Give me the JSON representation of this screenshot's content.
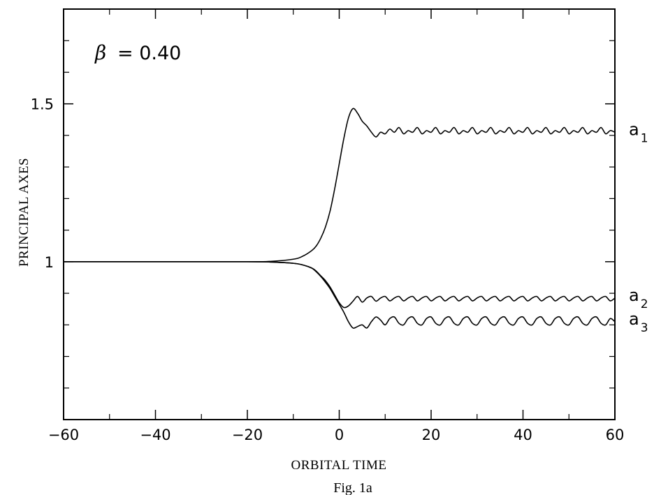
{
  "chart_data": {
    "type": "line",
    "title": "",
    "xlabel": "ORBITAL TIME",
    "ylabel": "PRINCIPAL AXES",
    "caption": "Fig. 1a",
    "annotation": {
      "symbol": "β",
      "text": "= 0.40"
    },
    "xlim": [
      -60,
      60
    ],
    "ylim": [
      0.5,
      1.8
    ],
    "x_ticks": [
      -60,
      -40,
      -20,
      0,
      20,
      40,
      60
    ],
    "x_tick_labels": [
      "−60",
      "−40",
      "−20",
      "0",
      "20",
      "40",
      "60"
    ],
    "y_ticks": [
      1,
      1.5
    ],
    "y_tick_labels": [
      "1",
      "1.5"
    ],
    "grid": false,
    "legend": "none",
    "series": [
      {
        "name": "a1",
        "label": {
          "main": "a",
          "sub": "1"
        },
        "x": [
          -60,
          -40,
          -20,
          -15,
          -10,
          -8,
          -6,
          -5,
          -4,
          -3,
          -2,
          -1,
          0,
          1,
          2,
          3,
          4,
          5,
          6,
          7,
          8,
          9,
          10,
          11,
          12,
          13,
          14,
          15,
          16,
          17,
          18,
          19,
          20,
          21,
          22,
          23,
          24,
          25,
          26,
          27,
          28,
          29,
          30,
          31,
          32,
          33,
          34,
          35,
          36,
          37,
          38,
          39,
          40,
          41,
          42,
          43,
          44,
          45,
          46,
          47,
          48,
          49,
          50,
          51,
          52,
          53,
          54,
          55,
          56,
          57,
          58,
          59,
          60
        ],
        "y": [
          1.0,
          1.0,
          1.0,
          1.001,
          1.008,
          1.017,
          1.035,
          1.05,
          1.075,
          1.11,
          1.16,
          1.23,
          1.31,
          1.39,
          1.455,
          1.485,
          1.47,
          1.445,
          1.43,
          1.41,
          1.395,
          1.41,
          1.405,
          1.42,
          1.41,
          1.425,
          1.405,
          1.415,
          1.41,
          1.425,
          1.405,
          1.415,
          1.41,
          1.425,
          1.405,
          1.415,
          1.41,
          1.425,
          1.405,
          1.415,
          1.41,
          1.425,
          1.405,
          1.415,
          1.41,
          1.425,
          1.405,
          1.415,
          1.41,
          1.425,
          1.405,
          1.415,
          1.41,
          1.425,
          1.405,
          1.415,
          1.41,
          1.425,
          1.405,
          1.415,
          1.41,
          1.425,
          1.405,
          1.415,
          1.41,
          1.425,
          1.405,
          1.415,
          1.41,
          1.425,
          1.405,
          1.415,
          1.41
        ]
      },
      {
        "name": "a2",
        "label": {
          "main": "a",
          "sub": "2"
        },
        "x": [
          -60,
          -40,
          -20,
          -15,
          -10,
          -8,
          -6,
          -5,
          -4,
          -3,
          -2,
          -1,
          0,
          1,
          2,
          3,
          4,
          5,
          6,
          7,
          8,
          9,
          10,
          11,
          12,
          13,
          14,
          15,
          16,
          17,
          18,
          19,
          20,
          21,
          22,
          23,
          24,
          25,
          26,
          27,
          28,
          29,
          30,
          31,
          32,
          33,
          34,
          35,
          36,
          37,
          38,
          39,
          40,
          41,
          42,
          43,
          44,
          45,
          46,
          47,
          48,
          49,
          50,
          51,
          52,
          53,
          54,
          55,
          56,
          57,
          58,
          59,
          60
        ],
        "y": [
          1.0,
          1.0,
          1.0,
          0.999,
          0.995,
          0.99,
          0.98,
          0.97,
          0.955,
          0.94,
          0.92,
          0.895,
          0.87,
          0.855,
          0.86,
          0.875,
          0.89,
          0.872,
          0.885,
          0.89,
          0.875,
          0.885,
          0.89,
          0.876,
          0.885,
          0.89,
          0.876,
          0.885,
          0.89,
          0.876,
          0.885,
          0.89,
          0.876,
          0.885,
          0.89,
          0.876,
          0.885,
          0.89,
          0.876,
          0.885,
          0.89,
          0.876,
          0.885,
          0.89,
          0.876,
          0.885,
          0.89,
          0.876,
          0.885,
          0.89,
          0.876,
          0.885,
          0.89,
          0.876,
          0.885,
          0.89,
          0.876,
          0.885,
          0.89,
          0.876,
          0.885,
          0.89,
          0.876,
          0.885,
          0.89,
          0.876,
          0.885,
          0.89,
          0.876,
          0.885,
          0.89,
          0.876,
          0.885
        ]
      },
      {
        "name": "a3",
        "label": {
          "main": "a",
          "sub": "3"
        },
        "x": [
          -60,
          -40,
          -20,
          -15,
          -10,
          -8,
          -6,
          -5,
          -4,
          -3,
          -2,
          -1,
          0,
          1,
          2,
          3,
          4,
          5,
          6,
          7,
          8,
          9,
          10,
          11,
          12,
          13,
          14,
          15,
          16,
          17,
          18,
          19,
          20,
          21,
          22,
          23,
          24,
          25,
          26,
          27,
          28,
          29,
          30,
          31,
          32,
          33,
          34,
          35,
          36,
          37,
          38,
          39,
          40,
          41,
          42,
          43,
          44,
          45,
          46,
          47,
          48,
          49,
          50,
          51,
          52,
          53,
          54,
          55,
          56,
          57,
          58,
          59,
          60
        ],
        "y": [
          1.0,
          1.0,
          1.0,
          0.999,
          0.995,
          0.99,
          0.98,
          0.968,
          0.953,
          0.935,
          0.915,
          0.89,
          0.865,
          0.84,
          0.81,
          0.79,
          0.795,
          0.8,
          0.79,
          0.81,
          0.825,
          0.815,
          0.8,
          0.82,
          0.825,
          0.805,
          0.8,
          0.82,
          0.825,
          0.805,
          0.8,
          0.82,
          0.825,
          0.805,
          0.8,
          0.82,
          0.825,
          0.805,
          0.8,
          0.82,
          0.825,
          0.805,
          0.8,
          0.82,
          0.825,
          0.805,
          0.8,
          0.82,
          0.825,
          0.805,
          0.8,
          0.82,
          0.825,
          0.805,
          0.8,
          0.82,
          0.825,
          0.805,
          0.8,
          0.82,
          0.825,
          0.805,
          0.8,
          0.82,
          0.825,
          0.805,
          0.8,
          0.82,
          0.825,
          0.805,
          0.8,
          0.82,
          0.81
        ]
      }
    ]
  }
}
